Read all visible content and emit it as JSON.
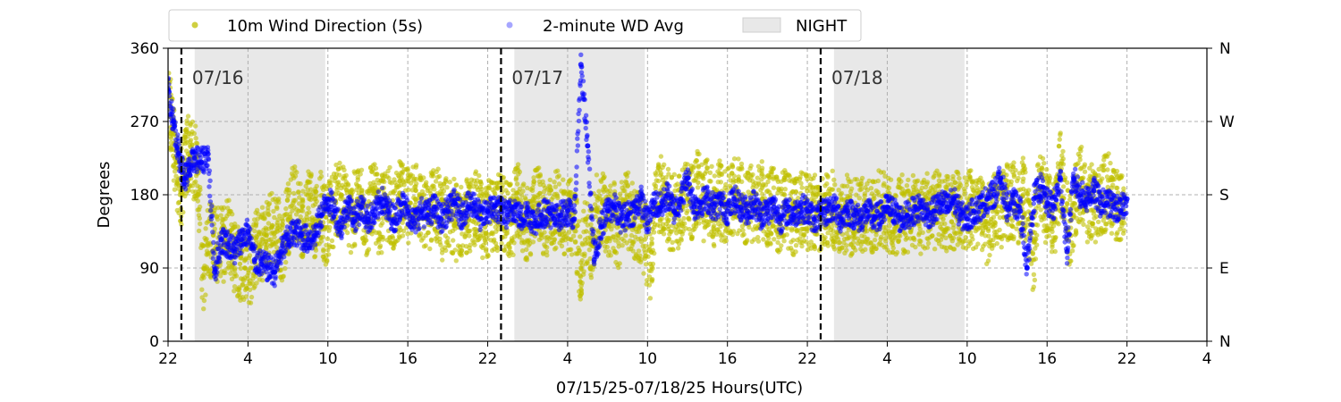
{
  "chart_data": {
    "type": "scatter",
    "title": "",
    "xlabel": "07/15/25-07/18/25  Hours(UTC)",
    "ylabel": "Degrees",
    "x_unit": "hours (UTC)",
    "xlim": [
      22,
      100
    ],
    "ylim": [
      0,
      360
    ],
    "x_ticks": [
      {
        "at": 22,
        "label": "22"
      },
      {
        "at": 28,
        "label": "4"
      },
      {
        "at": 34,
        "label": "10"
      },
      {
        "at": 40,
        "label": "16"
      },
      {
        "at": 46,
        "label": "22"
      },
      {
        "at": 52,
        "label": "4"
      },
      {
        "at": 58,
        "label": "10"
      },
      {
        "at": 64,
        "label": "16"
      },
      {
        "at": 70,
        "label": "22"
      },
      {
        "at": 76,
        "label": "4"
      },
      {
        "at": 82,
        "label": "10"
      },
      {
        "at": 88,
        "label": "16"
      },
      {
        "at": 94,
        "label": "22"
      },
      {
        "at": 100,
        "label": "4"
      }
    ],
    "y_ticks": [
      0,
      90,
      180,
      270,
      360
    ],
    "y2_ticks": [
      {
        "at": 0,
        "label": "N"
      },
      {
        "at": 90,
        "label": "E"
      },
      {
        "at": 180,
        "label": "S"
      },
      {
        "at": 270,
        "label": "W"
      },
      {
        "at": 360,
        "label": "N"
      }
    ],
    "grid": true,
    "legend": {
      "placement": "top",
      "entries": [
        {
          "label": "10m Wind Direction (5s)",
          "color": "#bfbf00",
          "kind": "marker"
        },
        {
          "label": "2-minute WD Avg",
          "color": "#0000ff",
          "kind": "marker"
        },
        {
          "label": "NIGHT",
          "color": "#e8e8e8",
          "kind": "patch"
        }
      ]
    },
    "night_spans": [
      [
        24,
        33.8
      ],
      [
        48,
        57.8
      ],
      [
        72,
        81.8
      ]
    ],
    "day_markers": [
      {
        "at": 23,
        "label": "07/16"
      },
      {
        "at": 47,
        "label": "07/17"
      },
      {
        "at": 71,
        "label": "07/18"
      }
    ],
    "x_data_end": 94,
    "series": [
      {
        "name": "10m Wind Direction (5s)",
        "color": "#bfbf00",
        "x": [
          22.0,
          22.3,
          22.6,
          22.9,
          23.2,
          23.5,
          23.8,
          24.2,
          24.6,
          25.0,
          25.4,
          25.8,
          26.2,
          26.6,
          27.0,
          27.4,
          27.8,
          28.2,
          28.6,
          29.0,
          29.4,
          29.8,
          30.2,
          30.6,
          31.0,
          31.4,
          31.8,
          32.2,
          32.6,
          33.0,
          33.4,
          33.8,
          34.2,
          34.6,
          35.0,
          35.4,
          35.8,
          36.2,
          36.6,
          37.0,
          37.4,
          37.8,
          38.2,
          38.6,
          39.0,
          39.4,
          39.8,
          40.2,
          40.6,
          41.0,
          41.4,
          41.8,
          42.2,
          42.6,
          43.0,
          43.4,
          43.8,
          44.2,
          44.6,
          45.0,
          45.4,
          45.8,
          46.2,
          46.6,
          47.0,
          47.4,
          47.8,
          48.2,
          48.6,
          49.0,
          49.4,
          49.8,
          50.2,
          50.6,
          51.0,
          51.4,
          51.8,
          52.2,
          52.6,
          53.0,
          53.4,
          53.8,
          54.2,
          54.6,
          55.0,
          55.4,
          55.8,
          56.2,
          56.6,
          57.0,
          57.4,
          57.8,
          58.2,
          58.6,
          59.0,
          59.4,
          59.8,
          60.2,
          60.6,
          61.0,
          61.4,
          61.8,
          62.2,
          62.6,
          63.0,
          63.4,
          63.8,
          64.2,
          64.6,
          65.0,
          65.4,
          65.8,
          66.2,
          66.6,
          67.0,
          67.4,
          67.8,
          68.2,
          68.6,
          69.0,
          69.4,
          69.8,
          70.2,
          70.6,
          71.0,
          71.4,
          71.8,
          72.2,
          72.6,
          73.0,
          73.4,
          73.8,
          74.2,
          74.6,
          75.0,
          75.4,
          75.8,
          76.2,
          76.6,
          77.0,
          77.4,
          77.8,
          78.2,
          78.6,
          79.0,
          79.4,
          79.8,
          80.2,
          80.6,
          81.0,
          81.4,
          81.8,
          82.2,
          82.6,
          83.0,
          83.4,
          83.8,
          84.2,
          84.6,
          85.0,
          85.4,
          85.8,
          86.2,
          86.6,
          87.0,
          87.4,
          87.8,
          88.2,
          88.6,
          89.0,
          89.4,
          89.8,
          90.2,
          90.6,
          91.0,
          91.4,
          91.8,
          92.2,
          92.6,
          93.0,
          93.4,
          93.8
        ],
        "values": [
          300,
          260,
          220,
          180,
          210,
          230,
          225,
          215,
          80,
          120,
          130,
          115,
          120,
          135,
          105,
          95,
          100,
          90,
          115,
          120,
          130,
          140,
          135,
          120,
          150,
          170,
          160,
          145,
          175,
          150,
          165,
          140,
          155,
          170,
          180,
          160,
          150,
          175,
          165,
          145,
          185,
          150,
          160,
          170,
          155,
          175,
          165,
          170,
          185,
          160,
          150,
          165,
          170,
          145,
          160,
          155,
          140,
          160,
          150,
          165,
          155,
          140,
          160,
          150,
          165,
          150,
          145,
          175,
          155,
          140,
          160,
          170,
          150,
          155,
          160,
          165,
          150,
          155,
          140,
          90,
          135,
          120,
          160,
          170,
          145,
          155,
          130,
          165,
          160,
          150,
          140,
          125,
          95,
          165,
          180,
          170,
          155,
          160,
          165,
          175,
          170,
          195,
          170,
          180,
          160,
          175,
          165,
          170,
          180,
          175,
          160,
          170,
          165,
          175,
          160,
          170,
          155,
          165,
          160,
          150,
          160,
          165,
          155,
          160,
          150,
          160,
          165,
          155,
          150,
          160,
          145,
          165,
          155,
          160,
          150,
          165,
          160,
          155,
          145,
          160,
          150,
          165,
          155,
          150,
          160,
          155,
          165,
          150,
          160,
          155,
          170,
          160,
          165,
          150,
          155,
          140,
          150,
          165,
          160,
          170,
          175,
          165,
          180,
          150,
          100,
          210,
          170,
          160,
          150,
          210,
          160,
          130,
          180,
          200,
          160,
          175,
          165,
          180,
          185,
          170,
          160,
          175
        ]
      },
      {
        "name": "2-minute WD Avg",
        "color": "#0000ff",
        "x": [
          22.0,
          22.4,
          22.8,
          23.2,
          23.6,
          24.0,
          24.5,
          25.0,
          25.5,
          26.0,
          26.5,
          27.0,
          27.5,
          28.0,
          28.5,
          29.0,
          29.5,
          30.0,
          30.5,
          31.0,
          31.5,
          32.0,
          32.5,
          33.0,
          33.5,
          34.0,
          34.5,
          35.0,
          35.5,
          36.0,
          36.5,
          37.0,
          37.5,
          38.0,
          38.5,
          39.0,
          39.5,
          40.0,
          40.5,
          41.0,
          41.5,
          42.0,
          42.5,
          43.0,
          43.5,
          44.0,
          44.5,
          45.0,
          45.5,
          46.0,
          46.5,
          47.0,
          47.5,
          48.0,
          48.5,
          49.0,
          49.5,
          50.0,
          50.5,
          51.0,
          51.5,
          52.0,
          52.5,
          53.0,
          53.5,
          54.0,
          54.5,
          55.0,
          55.5,
          56.0,
          56.5,
          57.0,
          57.5,
          58.0,
          58.5,
          59.0,
          59.5,
          60.0,
          60.5,
          61.0,
          61.5,
          62.0,
          62.5,
          63.0,
          63.5,
          64.0,
          64.5,
          65.0,
          65.5,
          66.0,
          66.5,
          67.0,
          67.5,
          68.0,
          68.5,
          69.0,
          69.5,
          70.0,
          70.5,
          71.0,
          71.5,
          72.0,
          72.5,
          73.0,
          73.5,
          74.0,
          74.5,
          75.0,
          75.5,
          76.0,
          76.5,
          77.0,
          77.5,
          78.0,
          78.5,
          79.0,
          79.5,
          80.0,
          80.5,
          81.0,
          81.5,
          82.0,
          82.5,
          83.0,
          83.5,
          84.0,
          84.5,
          85.0,
          85.5,
          86.0,
          86.5,
          87.0,
          87.5,
          88.0,
          88.5,
          89.0,
          89.5,
          90.0,
          90.5,
          91.0,
          91.5,
          92.0,
          92.5,
          93.0,
          93.5,
          94.0
        ],
        "values": [
          310,
          270,
          230,
          200,
          210,
          225,
          220,
          230,
          85,
          125,
          120,
          110,
          125,
          135,
          100,
          95,
          90,
          85,
          110,
          125,
          135,
          130,
          125,
          130,
          155,
          175,
          160,
          140,
          170,
          150,
          165,
          150,
          155,
          175,
          160,
          150,
          170,
          160,
          145,
          160,
          155,
          165,
          150,
          160,
          170,
          155,
          165,
          170,
          150,
          160,
          165,
          160,
          155,
          165,
          150,
          160,
          145,
          155,
          160,
          150,
          155,
          160,
          150,
          340,
          240,
          100,
          140,
          160,
          165,
          150,
          155,
          160,
          175,
          145,
          170,
          165,
          180,
          160,
          175,
          200,
          165,
          170,
          175,
          165,
          170,
          160,
          175,
          165,
          160,
          170,
          155,
          160,
          165,
          150,
          160,
          155,
          165,
          160,
          150,
          155,
          160,
          165,
          150,
          160,
          155,
          150,
          160,
          150,
          155,
          165,
          160,
          150,
          155,
          160,
          165,
          155,
          160,
          170,
          165,
          175,
          155,
          150,
          160,
          165,
          175,
          180,
          200,
          165,
          170,
          160,
          90,
          175,
          190,
          170,
          165,
          200,
          110,
          200,
          180,
          175,
          185,
          170,
          170,
          165,
          160,
          175
        ]
      }
    ]
  }
}
